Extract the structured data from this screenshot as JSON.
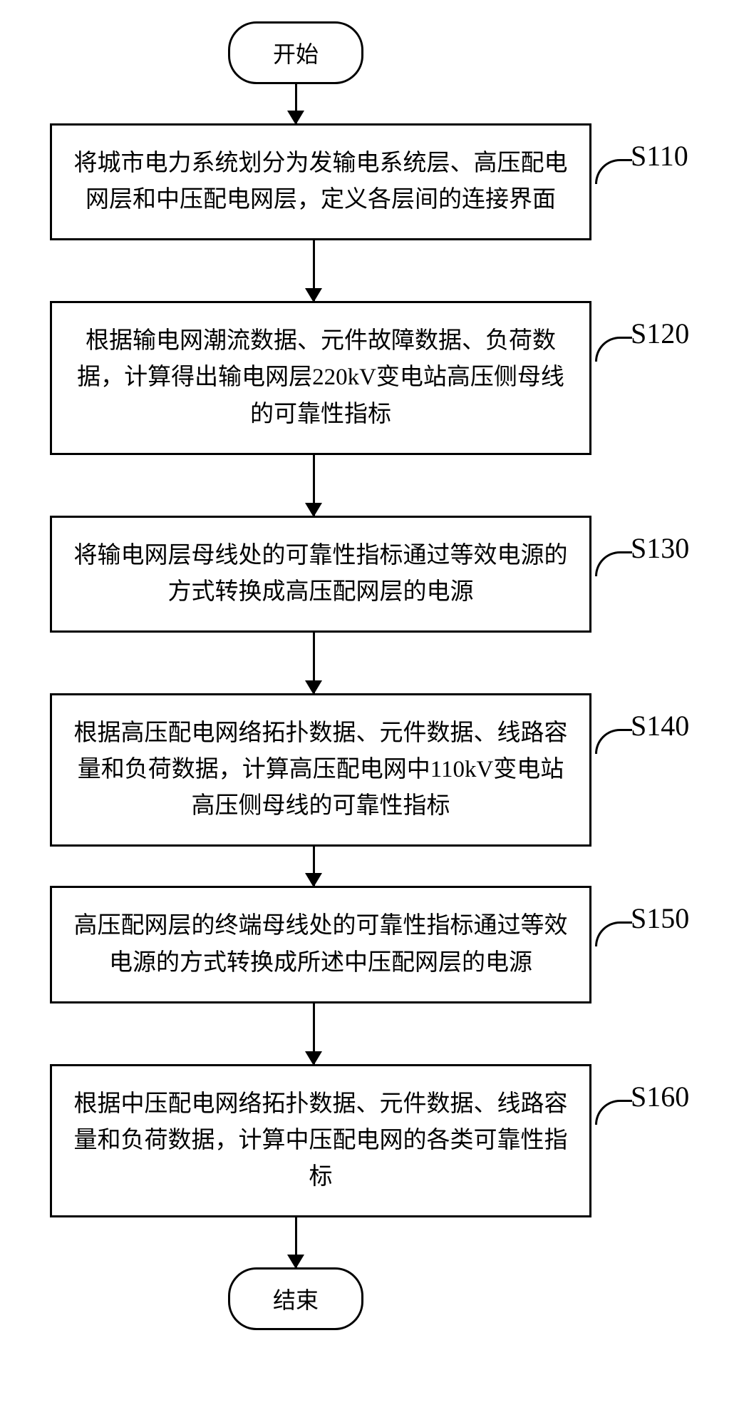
{
  "flowchart": {
    "type": "flowchart",
    "background_color": "#ffffff",
    "border_color": "#000000",
    "border_width": 3,
    "text_color": "#000000",
    "font_family": "SimSun",
    "process_fontsize": 33,
    "terminal_fontsize": 32,
    "label_fontsize": 40,
    "process_width": 760,
    "terminal_border_radius": 40,
    "arrow_head_size": 20,
    "start": {
      "label": "开始"
    },
    "end": {
      "label": "结束"
    },
    "steps": [
      {
        "id": "S110",
        "text": "将城市电力系统划分为发输电系统层、高压配电网层和中压配电网层，定义各层间的连接界面"
      },
      {
        "id": "S120",
        "text": "根据输电网潮流数据、元件故障数据、负荷数据，计算得出输电网层220kV变电站高压侧母线的可靠性指标"
      },
      {
        "id": "S130",
        "text": "将输电网层母线处的可靠性指标通过等效电源的方式转换成高压配网层的电源"
      },
      {
        "id": "S140",
        "text": "根据高压配电网络拓扑数据、元件数据、线路容量和负荷数据，计算高压配电网中110kV变电站高压侧母线的可靠性指标"
      },
      {
        "id": "S150",
        "text": "高压配网层的终端母线处的可靠性指标通过等效电源的方式转换成所述中压配网层的电源"
      },
      {
        "id": "S160",
        "text": "根据中压配电网络拓扑数据、元件数据、线路容量和负荷数据，计算中压配电网的各类可靠性指标"
      }
    ]
  }
}
